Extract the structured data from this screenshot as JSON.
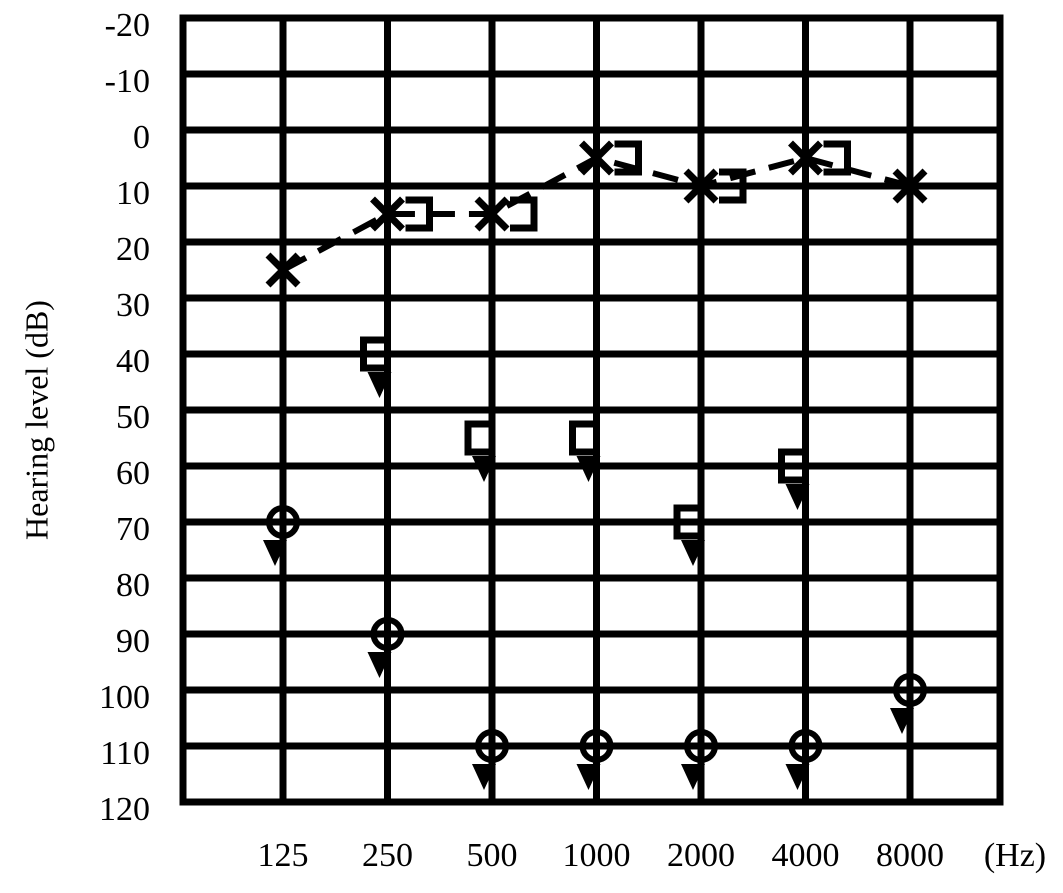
{
  "chart_data": {
    "type": "audiogram",
    "y_label": "Hearing level (dB)",
    "x_unit": "(Hz)",
    "categories": [
      "125",
      "250",
      "500",
      "1000",
      "2000",
      "4000",
      "8000"
    ],
    "ylim": [
      -20,
      120
    ],
    "yticks": [
      -20,
      -10,
      0,
      10,
      20,
      30,
      40,
      50,
      60,
      70,
      80,
      90,
      100,
      110,
      120
    ],
    "y_inverted": true,
    "grid": true,
    "series": [
      {
        "color": "#000000",
        "marker": "x",
        "dashed": true,
        "values": [
          25,
          15,
          15,
          5,
          10,
          5,
          10
        ]
      },
      {
        "color": "#000000",
        "marker": "bracket-right",
        "values": [
          null,
          15,
          15,
          5,
          10,
          5,
          null
        ]
      },
      {
        "color": "#000000",
        "marker": "circle",
        "no_response": true,
        "values": [
          70,
          90,
          110,
          110,
          110,
          110,
          100
        ]
      },
      {
        "color": "#000000",
        "marker": "bracket-left",
        "no_response": true,
        "values": [
          null,
          40,
          55,
          55,
          70,
          60,
          null
        ]
      }
    ]
  }
}
